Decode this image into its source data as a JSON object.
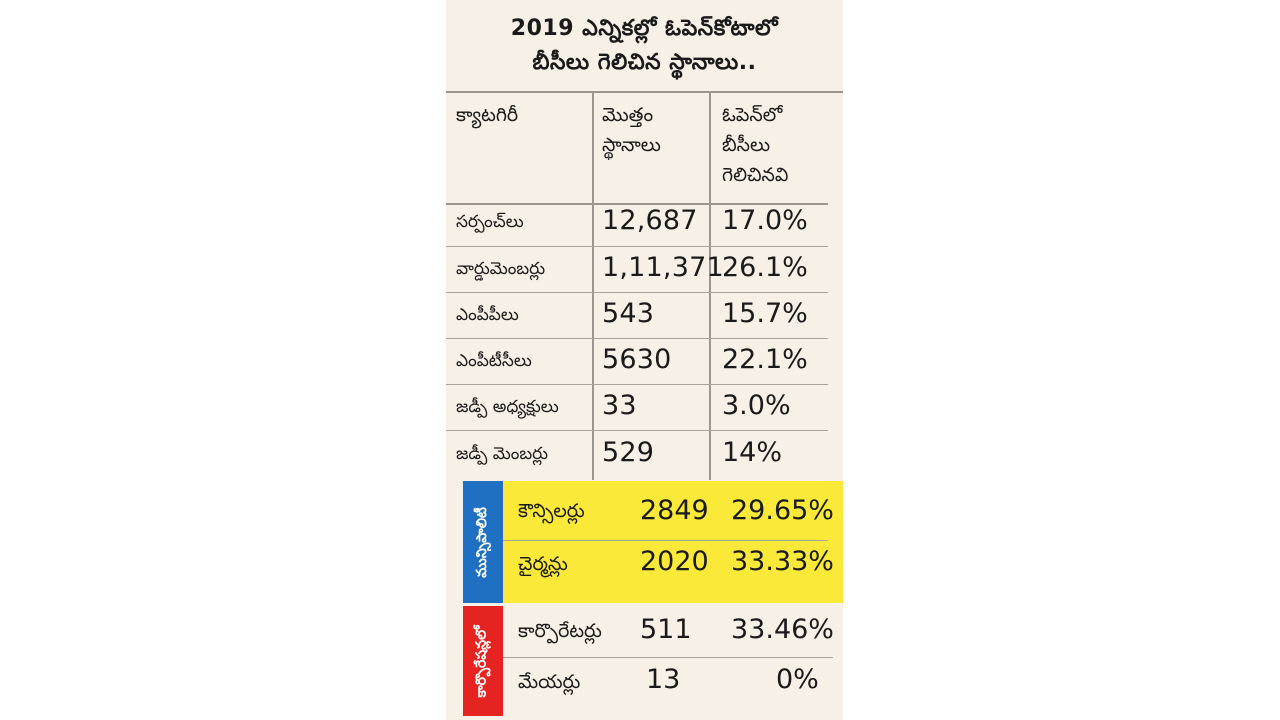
{
  "title": {
    "line1": "2019 ఎన్నికల్లో ఓపెన్‌కోటాలో",
    "line2": "బీసీలు గెలిచిన స్థానాలు.."
  },
  "headers": {
    "category": "క్యాటగిరీ",
    "total": [
      "మొత్తం",
      "స్థానాలు"
    ],
    "won": [
      "ఓపెన్‌లో",
      "బీసీలు",
      "గెలిచినవి"
    ]
  },
  "rows": [
    {
      "category": "సర్పంచ్‌లు",
      "total": "12,687",
      "percent": "17.0%"
    },
    {
      "category": "వార్డుమెంబర్లు",
      "total": "1,11,371",
      "percent": "26.1%"
    },
    {
      "category": "ఎంపీపీలు",
      "total": "543",
      "percent": "15.7%"
    },
    {
      "category": "ఎంపీటీసీలు",
      "total": "5630",
      "percent": "22.1%"
    },
    {
      "category": "జడ్పీ అధ్యక్షులు",
      "total": "33",
      "percent": "3.0%"
    },
    {
      "category": "జడ్పీ మెంబర్లు",
      "total": "529",
      "percent": "14%"
    }
  ],
  "municipalities": {
    "label": "మున్సిపాలిటీ",
    "rows": [
      {
        "category": "కౌన్సిలర్లు",
        "total": "2849",
        "percent": "29.65%"
      },
      {
        "category": "చైర్మన్లు",
        "total": "2020",
        "percent": "33.33%"
      }
    ]
  },
  "corporations": {
    "label": "కార్పొరేషన్లలో",
    "rows": [
      {
        "category": "కార్పొరేటర్లు",
        "total": "511",
        "percent": "33.46%"
      },
      {
        "category": "మేయర్లు",
        "total": "13",
        "percent": "0%"
      }
    ]
  },
  "colors": {
    "background": "#f7f0e6",
    "municipal_highlight": "#fbe93a",
    "municipal_tab": "#1f6fc2",
    "corporation_tab": "#e52421"
  }
}
